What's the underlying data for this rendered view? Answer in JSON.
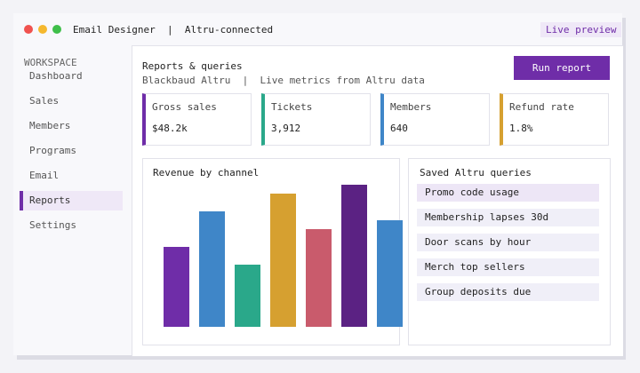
{
  "window": {
    "title": "Email Designer  |  Altru-connected",
    "badge": "Live preview"
  },
  "sidebar": {
    "heading": "WORKSPACE",
    "items": [
      "Dashboard",
      "Sales",
      "Members",
      "Programs",
      "Email",
      "Reports",
      "Settings"
    ],
    "active": 5
  },
  "header": {
    "title": "Reports & queries",
    "subtitle": "Blackbaud Altru  |  Live metrics from Altru data",
    "button": "Run report"
  },
  "kpis": [
    {
      "label": "Gross sales",
      "value": "$48.2k",
      "color": "#6f2da8"
    },
    {
      "label": "Tickets",
      "value": "3,912",
      "color": "#2aa88a"
    },
    {
      "label": "Members",
      "value": "640",
      "color": "#3f86c8"
    },
    {
      "label": "Refund rate",
      "value": "1.8%",
      "color": "#d6a030"
    }
  ],
  "chart_data": {
    "type": "bar",
    "title": "Revenue by channel",
    "values": [
      90,
      130,
      70,
      150,
      110,
      160,
      120
    ],
    "colors": [
      "#6f2da8",
      "#3f86c8",
      "#2aa88a",
      "#d6a030",
      "#c95b6c",
      "#5b2283",
      "#3f86c8"
    ],
    "ylim": [
      0,
      170
    ]
  },
  "queries": {
    "title": "Saved Altru queries",
    "items": [
      "Promo code usage",
      "Membership lapses 30d",
      "Door scans by hour",
      "Merch top sellers",
      "Group deposits due"
    ]
  }
}
